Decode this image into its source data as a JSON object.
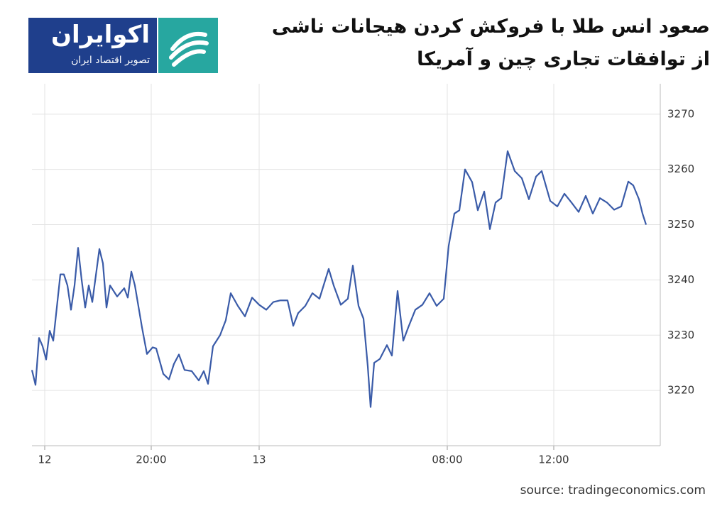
{
  "logo": {
    "name": "اکوایران",
    "tagline": "تصویر اقتصاد ایران"
  },
  "chart_data": {
    "type": "line",
    "title": [
      "صعود انس طلا با فروکش کردن هیجانات ناشی",
      "از توافقات تجاری چین و آمریکا"
    ],
    "x": [
      0,
      0.5,
      1,
      1.5,
      2,
      2.5,
      3,
      3.5,
      4,
      4.5,
      5,
      5.5,
      6,
      6.5,
      7,
      7.5,
      8,
      8.5,
      9.5,
      10,
      10.5,
      11,
      12,
      13,
      13.5,
      14,
      14.5,
      15.5,
      16.2,
      17,
      17.5,
      18.5,
      19.3,
      20,
      20.7,
      21.5,
      22.5,
      23.5,
      24.2,
      24.8,
      25.5,
      26.5,
      27.3,
      28,
      29,
      30,
      31,
      32,
      33,
      34,
      35,
      36,
      36.8,
      37.5,
      38.5,
      39.5,
      40.5,
      41.8,
      42.5,
      43.5,
      44.5,
      45.2,
      46,
      46.7,
      47.3,
      47.7,
      48.2,
      49,
      50,
      50.7,
      51.5,
      52.3,
      53,
      54,
      55,
      56,
      57,
      58,
      58.7,
      59.5,
      60.2,
      61,
      62,
      62.8,
      63.7,
      64.5,
      65.3,
      66.1,
      67,
      68,
      69,
      70,
      71,
      71.8,
      73,
      74,
      75,
      76,
      77,
      78,
      79,
      80,
      81,
      82,
      83,
      84,
      84.7,
      85.5,
      86,
      86.5
    ],
    "values": [
      3223.7,
      3221,
      3229.5,
      3228,
      3225.6,
      3230.8,
      3229,
      3235,
      3241,
      3241,
      3239,
      3234.6,
      3239,
      3245.8,
      3240,
      3235,
      3239,
      3236,
      3245.6,
      3243,
      3235,
      3239,
      3237,
      3238.5,
      3236.8,
      3241.5,
      3239,
      3231.4,
      3226.6,
      3227.8,
      3227.6,
      3223,
      3222,
      3224.8,
      3226.5,
      3223.7,
      3223.5,
      3221.8,
      3223.5,
      3221.2,
      3228,
      3230,
      3232.7,
      3237.6,
      3235.3,
      3233.4,
      3236.8,
      3235.5,
      3234.6,
      3236,
      3236.3,
      3236.3,
      3231.7,
      3234,
      3235.3,
      3237.6,
      3236.6,
      3242,
      3239,
      3235.5,
      3236.6,
      3242.6,
      3235.3,
      3233,
      3224.4,
      3217,
      3225,
      3225.7,
      3228.2,
      3226.3,
      3238,
      3229,
      3231.4,
      3234.6,
      3235.5,
      3237.6,
      3235.3,
      3236.6,
      3246.2,
      3252,
      3252.6,
      3260,
      3257.7,
      3252.6,
      3256,
      3249.2,
      3254,
      3254.8,
      3263.3,
      3259.7,
      3258.4,
      3254.6,
      3258.7,
      3259.7,
      3254.3,
      3253.3,
      3255.6,
      3254,
      3252.3,
      3255.2,
      3252,
      3254.8,
      3254,
      3252.7,
      3253.3,
      3257.8,
      3257.1,
      3254.6,
      3252,
      3250
    ],
    "color": "#3a5ba8",
    "xlim": [
      0,
      88.5
    ],
    "xticks": [
      {
        "value": 1.8,
        "label": "12"
      },
      {
        "value": 16.8,
        "label": "20:00"
      },
      {
        "value": 32,
        "label": "13"
      },
      {
        "value": 58.5,
        "label": "08:00"
      },
      {
        "value": 73.5,
        "label": "12:00"
      }
    ],
    "ylim": [
      3210,
      3275.5
    ],
    "yticks": [
      3220,
      3230,
      3240,
      3250,
      3260,
      3270
    ],
    "grid": true
  },
  "source": "source: tradingeconomics.com"
}
